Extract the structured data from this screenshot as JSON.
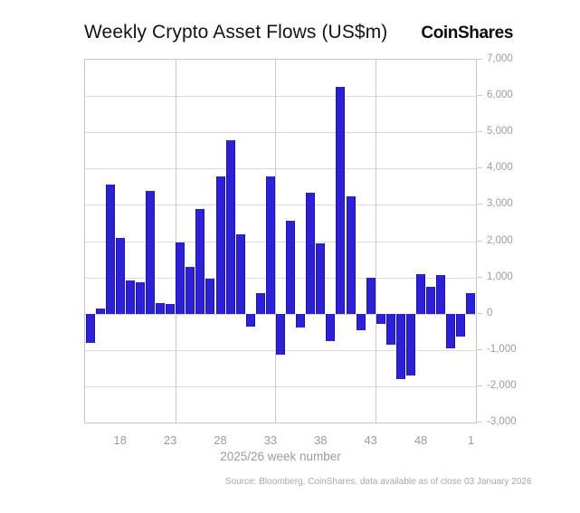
{
  "header": {
    "title": "Weekly Crypto Asset Flows (US$m)",
    "brand": "CoinShares"
  },
  "chart_data": {
    "type": "bar",
    "title": "Weekly Crypto Asset Flows (US$m)",
    "xlabel": "2025/26 week number",
    "ylabel": "",
    "ylim": [
      -3000,
      7000
    ],
    "ytick_step": 1000,
    "ytick_labels": [
      "7,000",
      "6,000",
      "5,000",
      "4,000",
      "3,000",
      "2,000",
      "1,000",
      "0",
      "-1,000",
      "-2,000",
      "-3,000"
    ],
    "categories": [
      "15",
      "16",
      "17",
      "18",
      "19",
      "20",
      "21",
      "22",
      "23",
      "24",
      "25",
      "26",
      "27",
      "28",
      "29",
      "30",
      "31",
      "32",
      "33",
      "34",
      "35",
      "36",
      "37",
      "38",
      "39",
      "40",
      "41",
      "42",
      "43",
      "44",
      "45",
      "46",
      "47",
      "48",
      "49",
      "50",
      "51",
      "52",
      "1"
    ],
    "values": [
      -800,
      150,
      3550,
      2080,
      920,
      860,
      3380,
      300,
      260,
      1970,
      1290,
      2880,
      970,
      3790,
      4790,
      2180,
      -350,
      560,
      3790,
      -1140,
      2550,
      -390,
      3340,
      1950,
      -760,
      6240,
      3240,
      -460,
      1000,
      -290,
      -850,
      -1800,
      -1710,
      1100,
      750,
      1060,
      -950,
      -640,
      560
    ],
    "xticks": [
      {
        "label": "18",
        "slot": 3
      },
      {
        "label": "23",
        "slot": 8
      },
      {
        "label": "28",
        "slot": 13
      },
      {
        "label": "33",
        "slot": 18
      },
      {
        "label": "38",
        "slot": 23
      },
      {
        "label": "43",
        "slot": 28
      },
      {
        "label": "48",
        "slot": 33
      },
      {
        "label": "1",
        "slot": 38
      }
    ],
    "vgrid_slot_boundaries": [
      9,
      19,
      29
    ],
    "bar_color": "#2c21d6",
    "grid": true,
    "legend_position": "none"
  },
  "footer": {
    "source": "Source: Bloomberg, CoinShares, data available as of close 03 January 2026"
  }
}
